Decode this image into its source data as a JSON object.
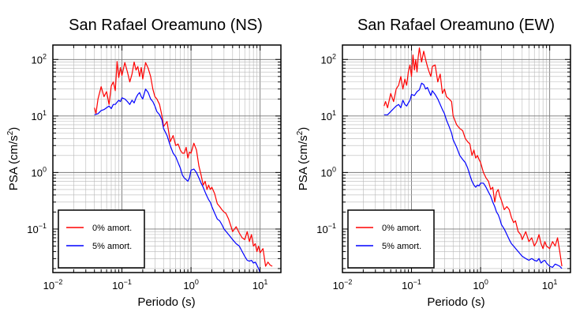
{
  "chart_data": [
    {
      "type": "line",
      "title": "San Rafael Oreamuno (NS)",
      "xlabel": "Periodo (s)",
      "ylabel_main": "PSA (cm/s",
      "ylabel_sup": "2",
      "ylabel_close": ")",
      "x_scale": "log",
      "y_scale": "log",
      "xlim": [
        0.01,
        20
      ],
      "ylim": [
        0.017,
        180
      ],
      "grid": true,
      "legend_position": "bottom-left",
      "x_ticks": [
        {
          "base": "10",
          "exp": "−2",
          "value": 0.01
        },
        {
          "base": "10",
          "exp": "−1",
          "value": 0.1
        },
        {
          "base": "10",
          "exp": "0",
          "value": 1
        },
        {
          "base": "10",
          "exp": "1",
          "value": 10
        }
      ],
      "y_ticks": [
        {
          "base": "10",
          "exp": "−1",
          "value": 0.1
        },
        {
          "base": "10",
          "exp": "0",
          "value": 1
        },
        {
          "base": "10",
          "exp": "1",
          "value": 10
        },
        {
          "base": "10",
          "exp": "2",
          "value": 100
        }
      ],
      "series": [
        {
          "name": "0% amort.",
          "color": "#ff0000",
          "x": [
            0.04,
            0.042,
            0.045,
            0.05,
            0.055,
            0.06,
            0.065,
            0.07,
            0.075,
            0.08,
            0.085,
            0.09,
            0.095,
            0.1,
            0.11,
            0.12,
            0.13,
            0.14,
            0.15,
            0.16,
            0.17,
            0.18,
            0.19,
            0.2,
            0.22,
            0.24,
            0.26,
            0.28,
            0.3,
            0.32,
            0.35,
            0.38,
            0.4,
            0.45,
            0.5,
            0.55,
            0.6,
            0.65,
            0.7,
            0.75,
            0.8,
            0.85,
            0.9,
            0.95,
            1.0,
            1.1,
            1.2,
            1.3,
            1.4,
            1.5,
            1.6,
            1.7,
            1.8,
            1.9,
            2.0,
            2.2,
            2.4,
            2.6,
            2.8,
            3.0,
            3.2,
            3.5,
            3.8,
            4.0,
            4.5,
            5.0,
            5.5,
            6.0,
            6.5,
            7.0,
            7.5,
            8.0,
            8.5,
            9.0,
            9.5,
            10,
            11,
            12,
            13,
            14,
            15
          ],
          "y": [
            14,
            11,
            20,
            33,
            22,
            27,
            16,
            34,
            40,
            28,
            92,
            48,
            72,
            52,
            88,
            60,
            40,
            55,
            90,
            65,
            75,
            50,
            72,
            45,
            88,
            70,
            50,
            30,
            22,
            20,
            16,
            10,
            6.5,
            8,
            3.5,
            4.5,
            3,
            3.2,
            2.5,
            2.2,
            2.2,
            2.8,
            1.8,
            2.3,
            2.2,
            3.3,
            2.5,
            1.3,
            0.9,
            0.6,
            0.7,
            0.5,
            0.6,
            0.5,
            0.55,
            0.42,
            0.28,
            0.25,
            0.22,
            0.2,
            0.19,
            0.15,
            0.11,
            0.09,
            0.11,
            0.085,
            0.07,
            0.065,
            0.09,
            0.06,
            0.08,
            0.05,
            0.055,
            0.04,
            0.05,
            0.038,
            0.045,
            0.022,
            0.026,
            0.023,
            0.022
          ]
        },
        {
          "name": "5% amort.",
          "color": "#0000ff",
          "x": [
            0.04,
            0.045,
            0.05,
            0.055,
            0.06,
            0.065,
            0.07,
            0.075,
            0.08,
            0.085,
            0.09,
            0.095,
            0.1,
            0.11,
            0.12,
            0.13,
            0.14,
            0.15,
            0.16,
            0.17,
            0.18,
            0.19,
            0.2,
            0.22,
            0.24,
            0.26,
            0.28,
            0.3,
            0.32,
            0.35,
            0.38,
            0.4,
            0.45,
            0.5,
            0.55,
            0.6,
            0.65,
            0.7,
            0.75,
            0.8,
            0.85,
            0.9,
            0.95,
            1.0,
            1.1,
            1.2,
            1.3,
            1.4,
            1.5,
            1.6,
            1.7,
            1.8,
            1.9,
            2.0,
            2.2,
            2.4,
            2.6,
            2.8,
            3.0,
            3.5,
            4.0,
            4.5,
            5.0,
            5.5,
            6.0,
            6.5,
            7.0,
            7.5,
            8.0,
            8.5,
            9.0,
            9.5,
            10
          ],
          "y": [
            10.5,
            11,
            12.5,
            13,
            14,
            15,
            13.5,
            16,
            16,
            17.5,
            19,
            18,
            21,
            20,
            18,
            16,
            19,
            17,
            21,
            24,
            26,
            22,
            20,
            30,
            26,
            20,
            18,
            15,
            12,
            10.5,
            8.5,
            6,
            4.5,
            3,
            2.2,
            1.9,
            1.5,
            1.2,
            0.9,
            0.8,
            0.75,
            0.7,
            0.8,
            1.1,
            1.15,
            1.0,
            0.8,
            0.65,
            0.55,
            0.45,
            0.38,
            0.33,
            0.3,
            0.25,
            0.19,
            0.15,
            0.14,
            0.12,
            0.1,
            0.08,
            0.065,
            0.055,
            0.05,
            0.04,
            0.033,
            0.028,
            0.027,
            0.028,
            0.025,
            0.026,
            0.023,
            0.02,
            0.017
          ]
        }
      ]
    },
    {
      "type": "line",
      "title": "San Rafael Oreamuno (EW)",
      "xlabel": "Periodo (s)",
      "ylabel_main": "PSA (cm/s",
      "ylabel_sup": "2",
      "ylabel_close": ")",
      "x_scale": "log",
      "y_scale": "log",
      "xlim": [
        0.01,
        20
      ],
      "ylim": [
        0.017,
        180
      ],
      "grid": true,
      "legend_position": "bottom-left",
      "x_ticks": [
        {
          "base": "10",
          "exp": "−2",
          "value": 0.01
        },
        {
          "base": "10",
          "exp": "−1",
          "value": 0.1
        },
        {
          "base": "10",
          "exp": "0",
          "value": 1
        },
        {
          "base": "10",
          "exp": "1",
          "value": 10
        }
      ],
      "y_ticks": [
        {
          "base": "10",
          "exp": "−1",
          "value": 0.1
        },
        {
          "base": "10",
          "exp": "0",
          "value": 1
        },
        {
          "base": "10",
          "exp": "1",
          "value": 10
        },
        {
          "base": "10",
          "exp": "2",
          "value": 100
        }
      ],
      "series": [
        {
          "name": "0% amort.",
          "color": "#ff0000",
          "x": [
            0.04,
            0.042,
            0.045,
            0.05,
            0.055,
            0.06,
            0.065,
            0.07,
            0.075,
            0.08,
            0.085,
            0.09,
            0.095,
            0.1,
            0.105,
            0.11,
            0.115,
            0.12,
            0.125,
            0.13,
            0.14,
            0.15,
            0.16,
            0.17,
            0.18,
            0.19,
            0.2,
            0.22,
            0.24,
            0.26,
            0.28,
            0.3,
            0.32,
            0.35,
            0.38,
            0.4,
            0.45,
            0.5,
            0.55,
            0.6,
            0.65,
            0.7,
            0.75,
            0.8,
            0.85,
            0.9,
            0.95,
            1.0,
            1.1,
            1.2,
            1.3,
            1.4,
            1.5,
            1.6,
            1.7,
            1.8,
            1.9,
            2.0,
            2.2,
            2.4,
            2.6,
            2.8,
            3.0,
            3.2,
            3.5,
            3.8,
            4.0,
            4.5,
            5.0,
            5.5,
            6.0,
            6.5,
            7.0,
            7.5,
            8.0,
            8.5,
            9.0,
            10,
            11,
            12,
            13,
            14,
            15
          ],
          "y": [
            15,
            18,
            14,
            25,
            18,
            30,
            35,
            50,
            30,
            45,
            35,
            60,
            80,
            50,
            120,
            65,
            100,
            60,
            110,
            160,
            90,
            140,
            100,
            75,
            60,
            50,
            75,
            80,
            40,
            55,
            25,
            30,
            22,
            20,
            18,
            10,
            7,
            6,
            5.5,
            4,
            3.5,
            3.2,
            2,
            2.5,
            1.8,
            2.0,
            1.7,
            1.5,
            1.0,
            0.8,
            0.7,
            0.5,
            0.55,
            0.3,
            0.45,
            0.5,
            0.38,
            0.32,
            0.22,
            0.25,
            0.22,
            0.16,
            0.13,
            0.14,
            0.09,
            0.08,
            0.065,
            0.09,
            0.06,
            0.07,
            0.05,
            0.06,
            0.08,
            0.055,
            0.045,
            0.06,
            0.05,
            0.045,
            0.06,
            0.05,
            0.07,
            0.04,
            0.022
          ]
        },
        {
          "name": "5% amort.",
          "color": "#0000ff",
          "x": [
            0.04,
            0.045,
            0.05,
            0.055,
            0.06,
            0.065,
            0.07,
            0.075,
            0.08,
            0.085,
            0.09,
            0.095,
            0.1,
            0.11,
            0.12,
            0.13,
            0.14,
            0.15,
            0.16,
            0.17,
            0.18,
            0.19,
            0.2,
            0.22,
            0.24,
            0.26,
            0.28,
            0.3,
            0.32,
            0.35,
            0.38,
            0.4,
            0.45,
            0.5,
            0.55,
            0.6,
            0.65,
            0.7,
            0.75,
            0.8,
            0.85,
            0.9,
            0.95,
            1.0,
            1.1,
            1.2,
            1.3,
            1.4,
            1.5,
            1.6,
            1.7,
            1.8,
            1.9,
            2.0,
            2.2,
            2.4,
            2.6,
            2.8,
            3.0,
            3.5,
            4.0,
            4.5,
            5.0,
            5.5,
            6.0,
            6.5,
            7.0,
            7.5,
            8.0,
            8.5,
            9.0,
            10,
            11,
            12,
            13,
            14,
            15
          ],
          "y": [
            10.5,
            10.5,
            12,
            13.5,
            15,
            16,
            14,
            19,
            16,
            15,
            17,
            19,
            24,
            23,
            27,
            29,
            38,
            36,
            30,
            32,
            27,
            23,
            28,
            24,
            20,
            16,
            13,
            11,
            8.5,
            6.5,
            5,
            3.8,
            2.8,
            2.0,
            1.7,
            1.5,
            1.2,
            0.9,
            0.7,
            0.6,
            0.55,
            0.6,
            0.58,
            0.65,
            0.65,
            0.55,
            0.45,
            0.38,
            0.3,
            0.25,
            0.2,
            0.18,
            0.15,
            0.12,
            0.1,
            0.08,
            0.065,
            0.055,
            0.05,
            0.04,
            0.033,
            0.03,
            0.028,
            0.03,
            0.028,
            0.027,
            0.03,
            0.025,
            0.027,
            0.028,
            0.025,
            0.022,
            0.021,
            0.024,
            0.023,
            0.022,
            0.02
          ]
        }
      ]
    }
  ]
}
